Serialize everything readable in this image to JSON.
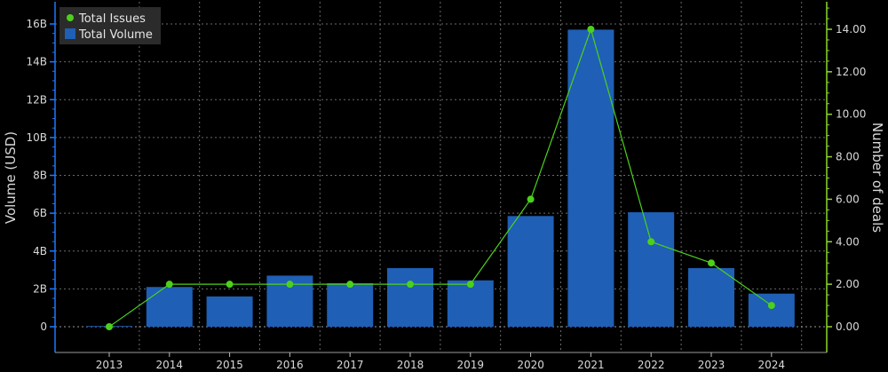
{
  "chart_data": {
    "type": "bar",
    "categories": [
      "2013",
      "2014",
      "2015",
      "2016",
      "2017",
      "2018",
      "2019",
      "2020",
      "2021",
      "2022",
      "2023",
      "2024"
    ],
    "series": [
      {
        "name": "Total Volume",
        "type": "bar",
        "axis": "left",
        "color": "#1f5fb5",
        "values_billion_usd": [
          0,
          2.1,
          1.6,
          2.7,
          2.3,
          3.1,
          2.45,
          5.85,
          15.7,
          6.05,
          3.1,
          1.75
        ]
      },
      {
        "name": "Total Issues",
        "type": "line",
        "axis": "right",
        "color": "#4cd11b",
        "values": [
          0,
          2,
          2,
          2,
          2,
          2,
          2,
          6,
          14,
          4,
          3,
          1
        ]
      }
    ],
    "left_axis": {
      "label": "Volume (USD)",
      "range": [
        0,
        17
      ],
      "ticks": [
        0,
        2,
        4,
        6,
        8,
        10,
        12,
        14,
        16
      ],
      "tick_labels": [
        "0",
        "2B",
        "4B",
        "6B",
        "8B",
        "10B",
        "12B",
        "14B",
        "16B"
      ],
      "color": "#1e78ff"
    },
    "right_axis": {
      "label": "Number of deals",
      "range": [
        -0.5,
        15.5
      ],
      "ticks": [
        0,
        2,
        4,
        6,
        8,
        10,
        12,
        14
      ],
      "tick_labels": [
        "0.00",
        "2.00",
        "4.00",
        "6.00",
        "8.00",
        "10.00",
        "12.00",
        "14.00"
      ],
      "color": "#8ad82a"
    },
    "legend": {
      "position": "top-left",
      "items": [
        {
          "label": "Total Issues",
          "marker": "dot"
        },
        {
          "label": "Total Volume",
          "marker": "square"
        }
      ]
    },
    "grid": true
  }
}
